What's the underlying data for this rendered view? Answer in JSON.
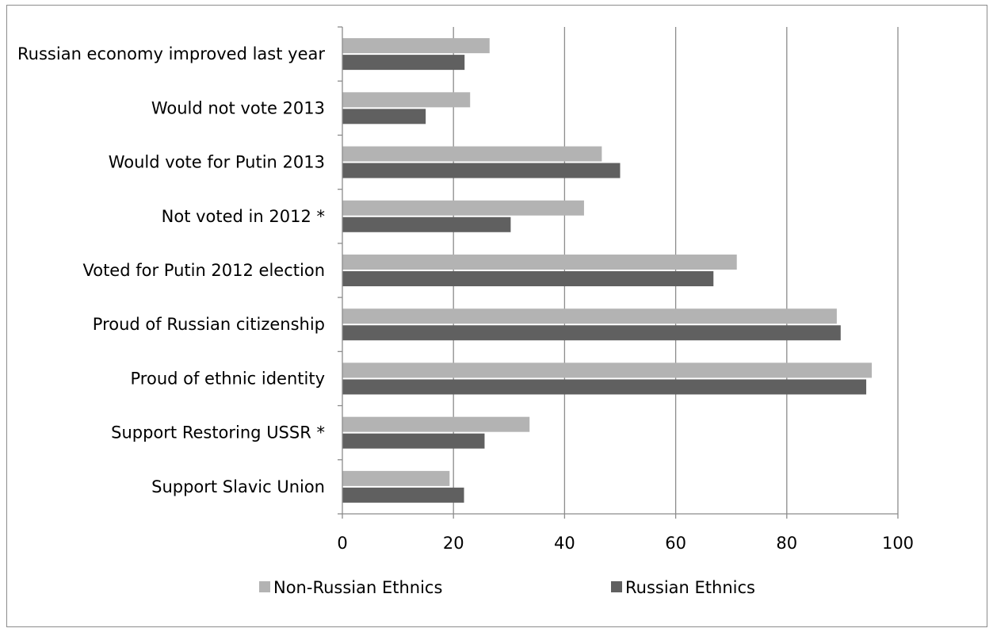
{
  "chart_data": {
    "type": "bar",
    "orientation": "horizontal",
    "categories": [
      "Russian economy improved last year",
      "Would not vote 2013",
      "Would vote for Putin 2013",
      "Not voted in 2012 *",
      "Voted for Putin 2012 election",
      "Proud of Russian citizenship",
      "Proud of ethnic identity",
      "Support Restoring USSR *",
      "Support Slavic Union"
    ],
    "series": [
      {
        "name": "Non-Russian Ethnics",
        "color": "#b3b3b3",
        "values": [
          26.5,
          23,
          46.7,
          43.5,
          71,
          89,
          95.3,
          33.7,
          19.3
        ]
      },
      {
        "name": "Russian Ethnics",
        "color": "#606060",
        "values": [
          22,
          15,
          50,
          30.3,
          66.8,
          89.7,
          94.3,
          25.6,
          21.9
        ]
      }
    ],
    "x_ticks": [
      "0",
      "20",
      "40",
      "60",
      "80",
      "100"
    ],
    "xlim": [
      0,
      100
    ],
    "title": "",
    "xlabel": "",
    "ylabel": "",
    "grid": "vertical",
    "legend_position": "bottom"
  }
}
